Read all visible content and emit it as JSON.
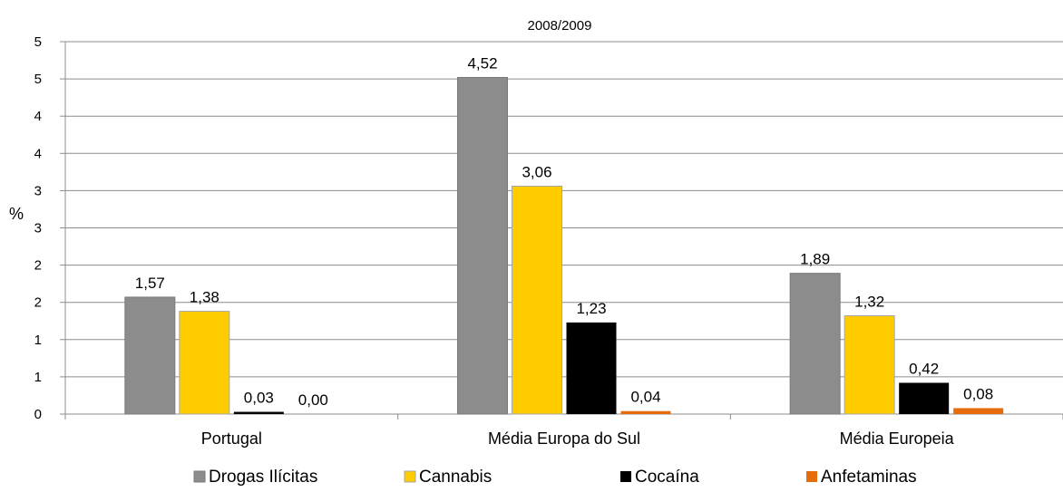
{
  "chart_data": {
    "type": "bar",
    "title": "2008/2009",
    "xlabel": "",
    "ylabel": "%",
    "ylim": [
      0,
      5
    ],
    "y_tick_labels": [
      "0",
      "1",
      "1",
      "2",
      "2",
      "3",
      "3",
      "4",
      "4",
      "5",
      "5"
    ],
    "grid": true,
    "legend_position": "bottom",
    "categories": [
      "Portugal",
      "Média Europa do Sul",
      "Média Europeia"
    ],
    "series": [
      {
        "name": "Drogas Ilícitas",
        "color": "#8c8c8c",
        "values": [
          1.57,
          4.52,
          1.89
        ],
        "labels": [
          "1,57",
          "4,52",
          "1,89"
        ]
      },
      {
        "name": "Cannabis",
        "color": "#ffcc00",
        "values": [
          1.38,
          3.06,
          1.32
        ],
        "labels": [
          "1,38",
          "3,06",
          "1,32"
        ]
      },
      {
        "name": "Cocaína",
        "color": "#000000",
        "values": [
          0.03,
          1.23,
          0.42
        ],
        "labels": [
          "0,03",
          "1,23",
          "0,42"
        ]
      },
      {
        "name": "Anfetaminas",
        "color": "#e46c0a",
        "values": [
          0.0,
          0.04,
          0.08
        ],
        "labels": [
          "0,00",
          "0,04",
          "0,08"
        ]
      }
    ]
  }
}
